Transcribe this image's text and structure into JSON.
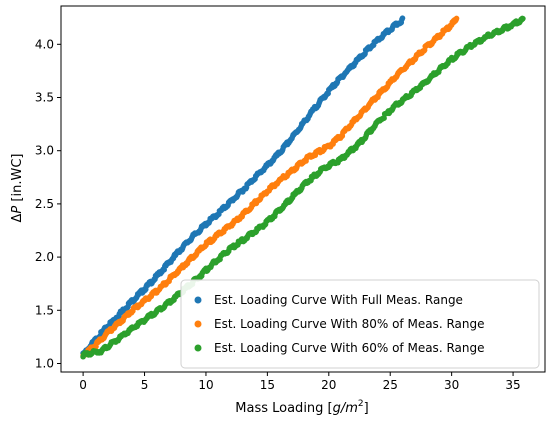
{
  "chart_data": {
    "type": "scatter",
    "title": "",
    "xlabel_prefix": "Mass Loading [",
    "xlabel_math": "g/m",
    "xlabel_sup": "2",
    "xlabel_suffix": "]",
    "ylabel_delta": "Δ",
    "ylabel_math": "P",
    "ylabel_suffix": " [in.WC]",
    "xlim": [
      -1.8,
      37.6
    ],
    "ylim": [
      0.92,
      4.36
    ],
    "x_ticks": [
      0,
      5,
      10,
      15,
      20,
      25,
      30,
      35
    ],
    "x_tick_labels": [
      "0",
      "5",
      "10",
      "15",
      "20",
      "25",
      "30",
      "35"
    ],
    "y_ticks": [
      1.0,
      1.5,
      2.0,
      2.5,
      3.0,
      3.5,
      4.0
    ],
    "y_tick_labels": [
      "1.0",
      "1.5",
      "2.0",
      "2.5",
      "3.0",
      "3.5",
      "4.0"
    ],
    "grid": false,
    "legend_position": "lower-right",
    "series": [
      {
        "name": "Est. Loading Curve With Full Meas. Range",
        "color": "#1f77b4",
        "x": [
          0,
          1,
          2,
          3,
          4,
          5,
          6,
          7,
          8,
          9,
          10,
          11,
          12,
          13,
          14,
          15,
          16,
          17,
          18,
          19,
          20,
          21,
          22,
          23,
          24,
          25,
          26
        ],
        "y": [
          1.08,
          1.22,
          1.35,
          1.47,
          1.59,
          1.7,
          1.82,
          1.95,
          2.08,
          2.2,
          2.31,
          2.41,
          2.52,
          2.63,
          2.75,
          2.86,
          2.98,
          3.12,
          3.27,
          3.42,
          3.56,
          3.69,
          3.81,
          3.93,
          4.04,
          4.14,
          4.23
        ]
      },
      {
        "name": "Est. Loading Curve With 80% of Meas. Range",
        "color": "#ff7f0e",
        "x": [
          0,
          1,
          2,
          3,
          4,
          5,
          6,
          7,
          8,
          9,
          10,
          11,
          12,
          13,
          14,
          15,
          16,
          17,
          18,
          19,
          20,
          21,
          22,
          23,
          24,
          25,
          26,
          27,
          28,
          29,
          30.4
        ],
        "y": [
          1.08,
          1.17,
          1.29,
          1.39,
          1.5,
          1.59,
          1.68,
          1.79,
          1.9,
          2.01,
          2.12,
          2.21,
          2.3,
          2.4,
          2.51,
          2.62,
          2.72,
          2.81,
          2.91,
          2.98,
          3.04,
          3.14,
          3.27,
          3.4,
          3.52,
          3.64,
          3.76,
          3.87,
          3.98,
          4.08,
          4.23
        ]
      },
      {
        "name": "Est. Loading Curve With 60% of Meas. Range",
        "color": "#2ca02c",
        "x": [
          0,
          1.5,
          3,
          4.5,
          6,
          7.5,
          9,
          10.5,
          12,
          13.5,
          15,
          16.5,
          18,
          19.5,
          21,
          22.5,
          24,
          25.5,
          27,
          28.5,
          30,
          31.5,
          33,
          34.5,
          35.8
        ],
        "y": [
          1.08,
          1.12,
          1.24,
          1.37,
          1.49,
          1.62,
          1.77,
          1.93,
          2.08,
          2.2,
          2.33,
          2.5,
          2.68,
          2.83,
          2.92,
          3.07,
          3.27,
          3.43,
          3.56,
          3.71,
          3.86,
          3.98,
          4.08,
          4.16,
          4.23
        ]
      }
    ]
  }
}
